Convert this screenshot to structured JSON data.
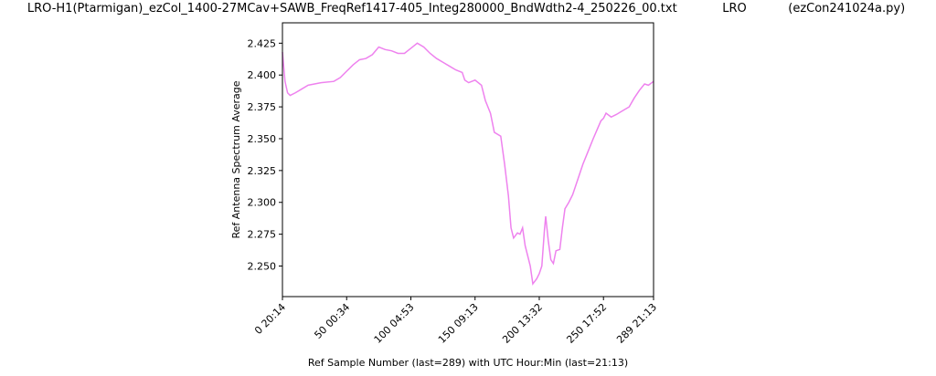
{
  "chart_data": {
    "type": "line",
    "title": "LRO-H1(Ptarmigan)_ezCol_1400-27MCav+SAWB_FreqRef1417-405_Integ280000_BndWdth2-4_250226_00.txt            LRO           (ezCon241024a.py)",
    "x_label": "Ref Sample Number (last=289) with UTC Hour:Min (last=21:13)",
    "y_label": "Ref Antenna Spectrum Average",
    "xlim": [
      0,
      289
    ],
    "ylim": [
      2.226,
      2.441
    ],
    "xticks": [
      {
        "value": 0,
        "label": "0  20:14"
      },
      {
        "value": 50,
        "label": "50  00:34"
      },
      {
        "value": 100,
        "label": "100  04:53"
      },
      {
        "value": 150,
        "label": "150  09:13"
      },
      {
        "value": 200,
        "label": "200  13:32"
      },
      {
        "value": 250,
        "label": "250  17:52"
      },
      {
        "value": 289,
        "label": "289  21:13"
      }
    ],
    "yticks": [
      {
        "value": 2.25,
        "label": "2.250"
      },
      2.275,
      {
        "value": 2.3,
        "label": "2.300"
      },
      2.325,
      {
        "value": 2.35,
        "label": "2.350"
      },
      2.375,
      {
        "value": 2.4,
        "label": "2.400"
      },
      2.425
    ],
    "series": [
      {
        "color": "#ee82ee",
        "x": [
          0,
          2,
          4,
          6,
          10,
          15,
          20,
          30,
          40,
          45,
          50,
          55,
          60,
          65,
          70,
          75,
          80,
          85,
          90,
          95,
          100,
          105,
          110,
          115,
          120,
          125,
          130,
          135,
          140,
          142,
          145,
          150,
          155,
          158,
          162,
          165,
          170,
          173,
          176,
          178,
          180,
          183,
          185,
          187,
          189,
          191,
          193,
          195,
          198,
          200,
          202,
          204,
          205,
          207,
          209,
          211,
          213,
          216,
          218,
          220,
          223,
          226,
          230,
          234,
          238,
          242,
          245,
          248,
          250,
          252,
          256,
          260,
          265,
          270,
          274,
          278,
          282,
          285,
          289
        ],
        "values": [
          2.418,
          2.395,
          2.386,
          2.384,
          2.386,
          2.389,
          2.392,
          2.394,
          2.395,
          2.398,
          2.403,
          2.408,
          2.412,
          2.413,
          2.416,
          2.422,
          2.42,
          2.419,
          2.417,
          2.417,
          2.421,
          2.425,
          2.422,
          2.417,
          2.413,
          2.41,
          2.407,
          2.404,
          2.402,
          2.396,
          2.394,
          2.396,
          2.392,
          2.38,
          2.37,
          2.355,
          2.352,
          2.33,
          2.305,
          2.28,
          2.272,
          2.276,
          2.275,
          2.28,
          2.266,
          2.258,
          2.25,
          2.236,
          2.24,
          2.244,
          2.25,
          2.278,
          2.289,
          2.27,
          2.255,
          2.252,
          2.262,
          2.263,
          2.28,
          2.295,
          2.3,
          2.306,
          2.318,
          2.33,
          2.34,
          2.35,
          2.357,
          2.364,
          2.366,
          2.37,
          2.367,
          2.369,
          2.372,
          2.375,
          2.382,
          2.388,
          2.393,
          2.392,
          2.395
        ]
      }
    ]
  }
}
